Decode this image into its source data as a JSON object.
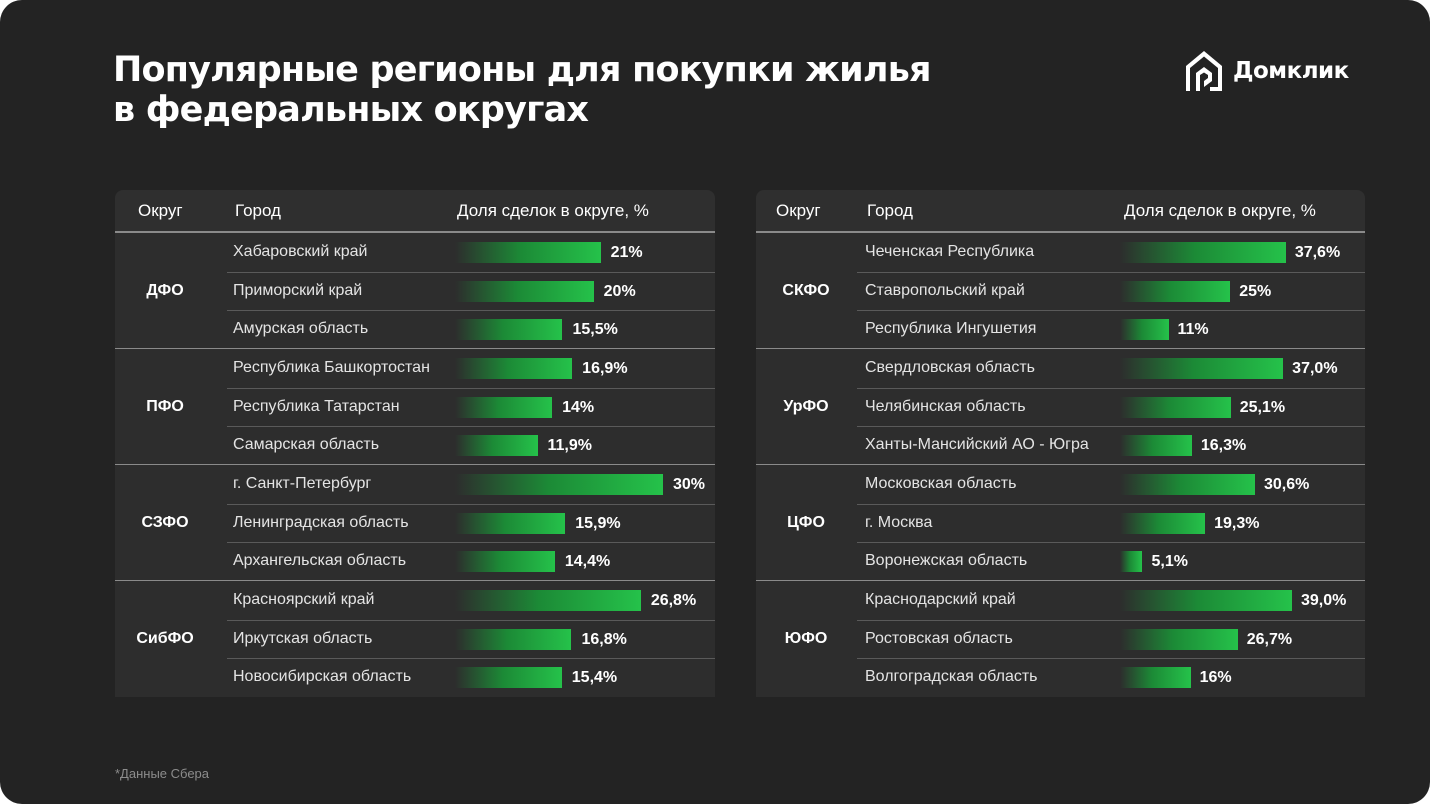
{
  "title_lines": [
    "Популярные регионы для покупки жилья",
    "в федеральных округах"
  ],
  "logo": {
    "text": "Домклик",
    "icon": "domclick-house-logo-icon"
  },
  "colors": {
    "background": "#232323",
    "table": "#2d2d2d",
    "bar_start": "#1c8a36",
    "bar_end": "#25c24a"
  },
  "footnote": "*Данные Сбера",
  "chart_data": [
    {
      "type": "bar",
      "title": "Популярные регионы для покупки жилья в федеральных округах",
      "columns": [
        "Округ",
        "Город",
        "Доля сделок в округе, %"
      ],
      "xlim": [
        0,
        30
      ],
      "groups": [
        {
          "okrug": "ДФО",
          "rows": [
            {
              "city": "Хабаровский край",
              "value": 21,
              "label": "21%"
            },
            {
              "city": "Приморский край",
              "value": 20,
              "label": "20%"
            },
            {
              "city": "Амурская область",
              "value": 15.5,
              "label": "15,5%"
            }
          ]
        },
        {
          "okrug": "ПФО",
          "rows": [
            {
              "city": "Республика Башкортостан",
              "value": 16.9,
              "label": "16,9%"
            },
            {
              "city": "Республика Татарстан",
              "value": 14,
              "label": "14%"
            },
            {
              "city": "Самарская область",
              "value": 11.9,
              "label": "11,9%"
            }
          ]
        },
        {
          "okrug": "СЗФО",
          "rows": [
            {
              "city": "г. Санкт-Петербург",
              "value": 30,
              "label": "30%"
            },
            {
              "city": "Ленинградская область",
              "value": 15.9,
              "label": "15,9%"
            },
            {
              "city": "Архангельская область",
              "value": 14.4,
              "label": "14,4%"
            }
          ]
        },
        {
          "okrug": "СибФО",
          "rows": [
            {
              "city": "Красноярский край",
              "value": 26.8,
              "label": "26,8%"
            },
            {
              "city": "Иркутская область",
              "value": 16.8,
              "label": "16,8%"
            },
            {
              "city": "Новосибирская область",
              "value": 15.4,
              "label": "15,4%"
            }
          ]
        }
      ]
    },
    {
      "type": "bar",
      "title": "Популярные регионы для покупки жилья в федеральных округах",
      "columns": [
        "Округ",
        "Город",
        "Доля сделок в округе, %"
      ],
      "xlim": [
        0,
        39
      ],
      "groups": [
        {
          "okrug": "СКФО",
          "rows": [
            {
              "city": "Чеченская Республика",
              "value": 37.6,
              "label": "37,6%"
            },
            {
              "city": "Ставропольский край",
              "value": 25,
              "label": "25%"
            },
            {
              "city": "Республика Ингушетия",
              "value": 11,
              "label": "11%"
            }
          ]
        },
        {
          "okrug": "УрФО",
          "rows": [
            {
              "city": "Свердловская область",
              "value": 37.0,
              "label": "37,0%"
            },
            {
              "city": "Челябинская область",
              "value": 25.1,
              "label": "25,1%"
            },
            {
              "city": "Ханты-Мансийский АО - Югра",
              "value": 16.3,
              "label": "16,3%"
            }
          ]
        },
        {
          "okrug": "ЦФО",
          "rows": [
            {
              "city": "Московская область",
              "value": 30.6,
              "label": "30,6%"
            },
            {
              "city": "г. Москва",
              "value": 19.3,
              "label": "19,3%"
            },
            {
              "city": "Воронежская область",
              "value": 5.1,
              "label": "5,1%"
            }
          ]
        },
        {
          "okrug": "ЮФО",
          "rows": [
            {
              "city": "Краснодарский край",
              "value": 39.0,
              "label": "39,0%"
            },
            {
              "city": "Ростовская область",
              "value": 26.7,
              "label": "26,7%"
            },
            {
              "city": "Волгоградская область",
              "value": 16,
              "label": "16%"
            }
          ]
        }
      ]
    }
  ]
}
